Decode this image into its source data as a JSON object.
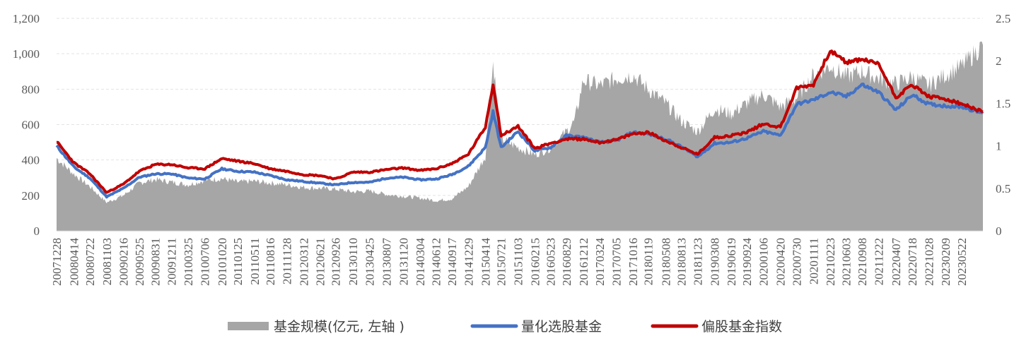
{
  "chart_data": {
    "type": "line",
    "title": "",
    "y_left": {
      "ylim": [
        0,
        1200
      ],
      "ticks": [
        "0",
        "200",
        "400",
        "600",
        "800",
        "1,000",
        "1,200"
      ]
    },
    "y_right": {
      "ylim": [
        0,
        2.5
      ],
      "ticks": [
        "0",
        "0.5",
        "1",
        "1.5",
        "2",
        "2.5"
      ]
    },
    "grid": true,
    "legend_position": "bottom",
    "x_tick_labels": [
      "20071228",
      "20080414",
      "20080722",
      "20081103",
      "20090216",
      "20090525",
      "20090831",
      "20091211",
      "20100325",
      "20100706",
      "20101020",
      "20110125",
      "20110511",
      "20110816",
      "20111128",
      "20120312",
      "20120621",
      "20120926",
      "20130110",
      "20130425",
      "20130807",
      "20131120",
      "20140304",
      "20140612",
      "20140917",
      "20141229",
      "20150414",
      "20150721",
      "20151103",
      "20160215",
      "20160523",
      "20160829",
      "20161212",
      "20170324",
      "20170705",
      "20171016",
      "20180119",
      "20180508",
      "20180813",
      "20181123",
      "20190308",
      "20190619",
      "20190924",
      "20200106",
      "20200420",
      "20200730",
      "20201111",
      "20210223",
      "20210603",
      "20210908",
      "20211222",
      "20220407",
      "20220718",
      "20221028",
      "20230209",
      "20230522"
    ],
    "series": [
      {
        "name": "基金规模(亿元, 左轴 )",
        "kind": "area",
        "axis": "left",
        "color": "#A6A6A6",
        "x": [
          "20071228",
          "20080414",
          "20080722",
          "20081103",
          "20090216",
          "20090525",
          "20090831",
          "20091211",
          "20100325",
          "20100706",
          "20101020",
          "20110125",
          "20110511",
          "20110816",
          "20111128",
          "20120312",
          "20120621",
          "20120926",
          "20130110",
          "20130425",
          "20130807",
          "20131120",
          "20140304",
          "20140612",
          "20140917",
          "20141229",
          "20150414",
          "20150601",
          "20150721",
          "20151103",
          "20160215",
          "20160523",
          "20160829",
          "20161020",
          "20161212",
          "20170324",
          "20170705",
          "20171016",
          "20180119",
          "20180508",
          "20180813",
          "20181123",
          "20190308",
          "20190619",
          "20190924",
          "20200106",
          "20200420",
          "20200730",
          "20201111",
          "20210223",
          "20210603",
          "20210908",
          "20211222",
          "20220407",
          "20220718",
          "20221028",
          "20230209",
          "20230522",
          "20230930"
        ],
        "values": [
          410,
          320,
          250,
          160,
          200,
          270,
          290,
          275,
          260,
          285,
          295,
          275,
          280,
          270,
          260,
          245,
          240,
          235,
          220,
          225,
          205,
          195,
          185,
          170,
          180,
          250,
          420,
          950,
          520,
          470,
          430,
          470,
          560,
          620,
          850,
          820,
          860,
          880,
          800,
          720,
          620,
          560,
          690,
          660,
          720,
          770,
          700,
          750,
          880,
          930,
          870,
          900,
          860,
          830,
          870,
          820,
          880,
          930,
          1050
        ]
      },
      {
        "name": "量化选股基金",
        "kind": "line",
        "axis": "right",
        "color": "#4472C4",
        "x": [
          "20071228",
          "20080414",
          "20080722",
          "20081103",
          "20090216",
          "20090525",
          "20090831",
          "20091211",
          "20100325",
          "20100706",
          "20101020",
          "20110125",
          "20110511",
          "20110816",
          "20111128",
          "20120312",
          "20120621",
          "20120926",
          "20130110",
          "20130425",
          "20130807",
          "20131120",
          "20140304",
          "20140612",
          "20140917",
          "20141229",
          "20150414",
          "20150601",
          "20150721",
          "20151103",
          "20160215",
          "20160523",
          "20160829",
          "20161212",
          "20170324",
          "20170705",
          "20171016",
          "20180119",
          "20180508",
          "20180813",
          "20181123",
          "20190308",
          "20190619",
          "20190924",
          "20200106",
          "20200420",
          "20200730",
          "20201111",
          "20210223",
          "20210603",
          "20210908",
          "20211222",
          "20220407",
          "20220718",
          "20221028",
          "20230209",
          "20230522",
          "20230930"
        ],
        "values": [
          1.0,
          0.75,
          0.62,
          0.4,
          0.5,
          0.63,
          0.67,
          0.67,
          0.62,
          0.61,
          0.73,
          0.7,
          0.69,
          0.65,
          0.6,
          0.58,
          0.56,
          0.54,
          0.57,
          0.57,
          0.62,
          0.63,
          0.6,
          0.61,
          0.66,
          0.76,
          0.98,
          1.4,
          0.98,
          1.17,
          0.94,
          0.98,
          1.12,
          1.1,
          1.04,
          1.06,
          1.16,
          1.14,
          1.08,
          0.99,
          0.87,
          1.03,
          1.04,
          1.09,
          1.17,
          1.12,
          1.49,
          1.54,
          1.63,
          1.58,
          1.72,
          1.63,
          1.42,
          1.6,
          1.49,
          1.47,
          1.46,
          1.38
        ]
      },
      {
        "name": "偏股基金指数",
        "kind": "line",
        "axis": "right",
        "color": "#C00000",
        "x": [
          "20071228",
          "20080414",
          "20080722",
          "20081103",
          "20090216",
          "20090525",
          "20090831",
          "20091211",
          "20100325",
          "20100706",
          "20101020",
          "20110125",
          "20110511",
          "20110816",
          "20111128",
          "20120312",
          "20120621",
          "20120926",
          "20130110",
          "20130425",
          "20130807",
          "20131120",
          "20140304",
          "20140612",
          "20140917",
          "20141229",
          "20150414",
          "20150601",
          "20150721",
          "20151103",
          "20160215",
          "20160523",
          "20160829",
          "20161212",
          "20170324",
          "20170705",
          "20171016",
          "20180119",
          "20180508",
          "20180813",
          "20181123",
          "20190308",
          "20190619",
          "20190924",
          "20200106",
          "20200420",
          "20200730",
          "20201111",
          "20210223",
          "20210603",
          "20210908",
          "20211222",
          "20220407",
          "20220718",
          "20221028",
          "20230209",
          "20230522",
          "20230930"
        ],
        "values": [
          1.05,
          0.8,
          0.67,
          0.45,
          0.55,
          0.7,
          0.78,
          0.78,
          0.74,
          0.73,
          0.85,
          0.82,
          0.79,
          0.73,
          0.7,
          0.66,
          0.65,
          0.61,
          0.69,
          0.69,
          0.72,
          0.74,
          0.71,
          0.73,
          0.79,
          0.9,
          1.22,
          1.73,
          1.12,
          1.23,
          0.97,
          1.03,
          1.08,
          1.08,
          1.04,
          1.07,
          1.14,
          1.16,
          1.06,
          0.98,
          0.9,
          1.1,
          1.12,
          1.16,
          1.26,
          1.22,
          1.68,
          1.72,
          2.12,
          1.98,
          2.02,
          1.96,
          1.57,
          1.72,
          1.58,
          1.55,
          1.49,
          1.4
        ]
      }
    ]
  },
  "legend": {
    "items": [
      {
        "label": "基金规模(亿元, 左轴 )"
      },
      {
        "label": "量化选股基金"
      },
      {
        "label": "偏股基金指数"
      }
    ]
  }
}
